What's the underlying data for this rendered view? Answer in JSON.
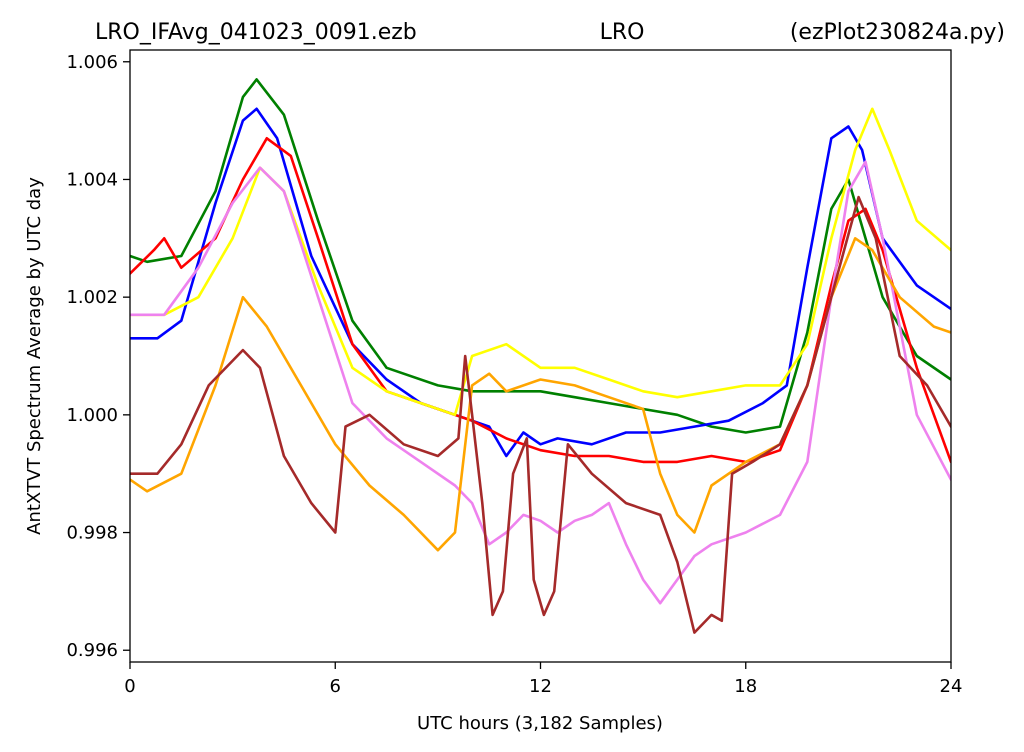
{
  "header": {
    "left": "LRO_IFAvg_041023_0091.ezb",
    "center": "LRO",
    "right": "(ezPlot230824a.py)"
  },
  "chart_data": {
    "type": "line",
    "xlabel": "UTC hours  (3,182 Samples)",
    "ylabel": "AntXTVT Spectrum Average by UTC day",
    "xlim": [
      0,
      24
    ],
    "ylim": [
      0.9958,
      1.0062
    ],
    "xticks": [
      0,
      6,
      12,
      18,
      24
    ],
    "xtick_labels": [
      "0",
      "6",
      "12",
      "18",
      "24"
    ],
    "yticks": [
      0.996,
      0.998,
      1.0,
      1.002,
      1.004,
      1.006
    ],
    "ytick_labels": [
      "0.996",
      "0.998",
      "1.000",
      "1.002",
      "1.004",
      "1.006"
    ],
    "grid": false,
    "legend": false,
    "series": [
      {
        "color": "#008000",
        "points": [
          [
            0,
            1.0027
          ],
          [
            0.5,
            1.0026
          ],
          [
            1.5,
            1.0027
          ],
          [
            2.5,
            1.0038
          ],
          [
            3.3,
            1.0054
          ],
          [
            3.7,
            1.0057
          ],
          [
            4.5,
            1.0051
          ],
          [
            5.5,
            1.0033
          ],
          [
            6.5,
            1.0016
          ],
          [
            7.5,
            1.0008
          ],
          [
            9,
            1.0005
          ],
          [
            10,
            1.0004
          ],
          [
            11,
            1.0004
          ],
          [
            12,
            1.0004
          ],
          [
            13,
            1.0003
          ],
          [
            14,
            1.0002
          ],
          [
            15,
            1.0001
          ],
          [
            16,
            1.0
          ],
          [
            17,
            0.9998
          ],
          [
            18,
            0.9997
          ],
          [
            19,
            0.9998
          ],
          [
            19.8,
            1.0014
          ],
          [
            20.5,
            1.0035
          ],
          [
            21,
            1.004
          ],
          [
            21.5,
            1.003
          ],
          [
            22,
            1.002
          ],
          [
            23,
            1.001
          ],
          [
            24,
            1.0006
          ]
        ]
      },
      {
        "color": "#0000ff",
        "points": [
          [
            0,
            1.0013
          ],
          [
            0.8,
            1.0013
          ],
          [
            1.5,
            1.0016
          ],
          [
            2.5,
            1.0036
          ],
          [
            3.3,
            1.005
          ],
          [
            3.7,
            1.0052
          ],
          [
            4.3,
            1.0047
          ],
          [
            5.3,
            1.0027
          ],
          [
            6.5,
            1.0012
          ],
          [
            7.5,
            1.0006
          ],
          [
            8.5,
            1.0002
          ],
          [
            9.5,
            1.0
          ],
          [
            10.5,
            0.9998
          ],
          [
            11,
            0.9993
          ],
          [
            11.5,
            0.9997
          ],
          [
            12,
            0.9995
          ],
          [
            12.5,
            0.9996
          ],
          [
            13.5,
            0.9995
          ],
          [
            14.5,
            0.9997
          ],
          [
            15.5,
            0.9997
          ],
          [
            16.5,
            0.9998
          ],
          [
            17.5,
            0.9999
          ],
          [
            18.5,
            1.0002
          ],
          [
            19.2,
            1.0005
          ],
          [
            19.8,
            1.0025
          ],
          [
            20.5,
            1.0047
          ],
          [
            21,
            1.0049
          ],
          [
            21.4,
            1.0045
          ],
          [
            22,
            1.003
          ],
          [
            23,
            1.0022
          ],
          [
            24,
            1.0018
          ]
        ]
      },
      {
        "color": "#ff0000",
        "points": [
          [
            0,
            1.0024
          ],
          [
            0.7,
            1.0028
          ],
          [
            1,
            1.003
          ],
          [
            1.5,
            1.0025
          ],
          [
            2.5,
            1.003
          ],
          [
            3.3,
            1.004
          ],
          [
            4,
            1.0047
          ],
          [
            4.7,
            1.0044
          ],
          [
            5.5,
            1.003
          ],
          [
            6.5,
            1.0012
          ],
          [
            7.5,
            1.0004
          ],
          [
            9,
            1.0001
          ],
          [
            10,
            0.9999
          ],
          [
            11,
            0.9996
          ],
          [
            12,
            0.9994
          ],
          [
            13,
            0.9993
          ],
          [
            14,
            0.9993
          ],
          [
            15,
            0.9992
          ],
          [
            16,
            0.9992
          ],
          [
            17,
            0.9993
          ],
          [
            18,
            0.9992
          ],
          [
            19,
            0.9994
          ],
          [
            19.8,
            1.0005
          ],
          [
            20.5,
            1.0022
          ],
          [
            21,
            1.0033
          ],
          [
            21.5,
            1.0035
          ],
          [
            22,
            1.0028
          ],
          [
            23,
            1.0008
          ],
          [
            24,
            0.9992
          ]
        ]
      },
      {
        "color": "#ffff00",
        "points": [
          [
            0,
            1.0017
          ],
          [
            1,
            1.0017
          ],
          [
            2,
            1.002
          ],
          [
            3,
            1.003
          ],
          [
            3.8,
            1.0042
          ],
          [
            4.5,
            1.0038
          ],
          [
            5.5,
            1.0022
          ],
          [
            6.5,
            1.0008
          ],
          [
            7.5,
            1.0004
          ],
          [
            8.5,
            1.0002
          ],
          [
            9.5,
            1.0
          ],
          [
            10,
            1.001
          ],
          [
            11,
            1.0012
          ],
          [
            12,
            1.0008
          ],
          [
            13,
            1.0008
          ],
          [
            14,
            1.0006
          ],
          [
            15,
            1.0004
          ],
          [
            16,
            1.0003
          ],
          [
            17,
            1.0004
          ],
          [
            18,
            1.0005
          ],
          [
            19,
            1.0005
          ],
          [
            19.8,
            1.0012
          ],
          [
            20.5,
            1.003
          ],
          [
            21.2,
            1.0045
          ],
          [
            21.7,
            1.0052
          ],
          [
            22.2,
            1.0045
          ],
          [
            23,
            1.0033
          ],
          [
            24,
            1.0028
          ]
        ]
      },
      {
        "color": "#ee82ee",
        "points": [
          [
            0,
            1.0017
          ],
          [
            1,
            1.0017
          ],
          [
            2,
            1.0025
          ],
          [
            3,
            1.0036
          ],
          [
            3.8,
            1.0042
          ],
          [
            4.5,
            1.0038
          ],
          [
            5.5,
            1.002
          ],
          [
            6.5,
            1.0002
          ],
          [
            7.5,
            0.9996
          ],
          [
            8.5,
            0.9992
          ],
          [
            9.5,
            0.9988
          ],
          [
            10,
            0.9985
          ],
          [
            10.5,
            0.9978
          ],
          [
            11,
            0.998
          ],
          [
            11.5,
            0.9983
          ],
          [
            12,
            0.9982
          ],
          [
            12.5,
            0.998
          ],
          [
            13,
            0.9982
          ],
          [
            13.5,
            0.9983
          ],
          [
            14,
            0.9985
          ],
          [
            14.5,
            0.9978
          ],
          [
            15,
            0.9972
          ],
          [
            15.5,
            0.9968
          ],
          [
            16,
            0.9972
          ],
          [
            16.5,
            0.9976
          ],
          [
            17,
            0.9978
          ],
          [
            18,
            0.998
          ],
          [
            19,
            0.9983
          ],
          [
            19.8,
            0.9992
          ],
          [
            20.5,
            1.002
          ],
          [
            21,
            1.0038
          ],
          [
            21.5,
            1.0043
          ],
          [
            22,
            1.003
          ],
          [
            23,
            1.0
          ],
          [
            24,
            0.9989
          ]
        ]
      },
      {
        "color": "#ffa500",
        "points": [
          [
            0,
            0.9989
          ],
          [
            0.5,
            0.9987
          ],
          [
            1.5,
            0.999
          ],
          [
            2.5,
            1.0005
          ],
          [
            3.3,
            1.002
          ],
          [
            4,
            1.0015
          ],
          [
            5,
            1.0005
          ],
          [
            6,
            0.9995
          ],
          [
            7,
            0.9988
          ],
          [
            8,
            0.9983
          ],
          [
            9,
            0.9977
          ],
          [
            9.5,
            0.998
          ],
          [
            10,
            1.0005
          ],
          [
            10.5,
            1.0007
          ],
          [
            11,
            1.0004
          ],
          [
            12,
            1.0006
          ],
          [
            13,
            1.0005
          ],
          [
            14,
            1.0003
          ],
          [
            15,
            1.0001
          ],
          [
            15.5,
            0.999
          ],
          [
            16,
            0.9983
          ],
          [
            16.5,
            0.998
          ],
          [
            17,
            0.9988
          ],
          [
            18,
            0.9992
          ],
          [
            19,
            0.9995
          ],
          [
            19.8,
            1.0005
          ],
          [
            20.5,
            1.002
          ],
          [
            21.2,
            1.003
          ],
          [
            21.7,
            1.0028
          ],
          [
            22.5,
            1.002
          ],
          [
            23.5,
            1.0015
          ],
          [
            24,
            1.0014
          ]
        ]
      },
      {
        "color": "#a52a2a",
        "points": [
          [
            0,
            0.999
          ],
          [
            0.8,
            0.999
          ],
          [
            1.5,
            0.9995
          ],
          [
            2.3,
            1.0005
          ],
          [
            3.3,
            1.0011
          ],
          [
            3.8,
            1.0008
          ],
          [
            4.5,
            0.9993
          ],
          [
            5.3,
            0.9985
          ],
          [
            6,
            0.998
          ],
          [
            6.3,
            0.9998
          ],
          [
            7,
            1.0
          ],
          [
            8,
            0.9995
          ],
          [
            9,
            0.9993
          ],
          [
            9.6,
            0.9996
          ],
          [
            9.8,
            1.001
          ],
          [
            10,
            1.0
          ],
          [
            10.3,
            0.9985
          ],
          [
            10.6,
            0.9966
          ],
          [
            10.9,
            0.997
          ],
          [
            11.2,
            0.999
          ],
          [
            11.6,
            0.9996
          ],
          [
            11.8,
            0.9972
          ],
          [
            12.1,
            0.9966
          ],
          [
            12.4,
            0.997
          ],
          [
            12.8,
            0.9995
          ],
          [
            13.5,
            0.999
          ],
          [
            14.5,
            0.9985
          ],
          [
            15.5,
            0.9983
          ],
          [
            16,
            0.9975
          ],
          [
            16.5,
            0.9963
          ],
          [
            17,
            0.9966
          ],
          [
            17.3,
            0.9965
          ],
          [
            17.6,
            0.999
          ],
          [
            18.2,
            0.9992
          ],
          [
            19,
            0.9995
          ],
          [
            19.8,
            1.0005
          ],
          [
            20.5,
            1.002
          ],
          [
            21.3,
            1.0037
          ],
          [
            21.8,
            1.003
          ],
          [
            22.5,
            1.001
          ],
          [
            23.3,
            1.0005
          ],
          [
            24,
            0.9998
          ]
        ]
      }
    ]
  }
}
